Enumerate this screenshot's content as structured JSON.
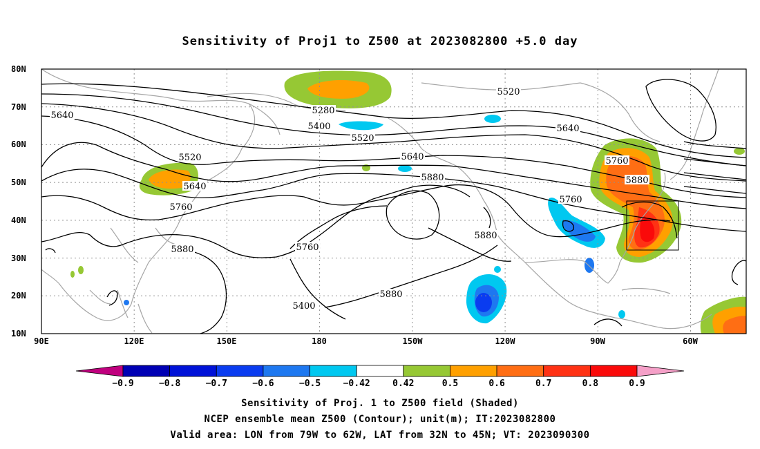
{
  "title": "Sensitivity of Proj1 to Z500 at 2023082800 +5.0 day",
  "lat_labels": [
    "80N",
    "70N",
    "60N",
    "50N",
    "40N",
    "30N",
    "20N",
    "10N"
  ],
  "lon_labels": [
    "90E",
    "120E",
    "150E",
    "180",
    "150W",
    "120W",
    "90W",
    "60W"
  ],
  "contour_labels": [
    "5640",
    "5520",
    "5640",
    "5760",
    "5880",
    "5280",
    "5400",
    "5520",
    "5640",
    "5880",
    "5760",
    "5880",
    "5400",
    "5520",
    "5640",
    "5760",
    "5880",
    "5760",
    "5880"
  ],
  "colorbar": {
    "ticks": [
      "-0.9",
      "-0.8",
      "-0.7",
      "-0.6",
      "-0.5",
      "-0.42",
      "0.42",
      "0.5",
      "0.6",
      "0.7",
      "0.8",
      "0.9"
    ],
    "colors": [
      "#c0007e",
      "#0000b4",
      "#0012d8",
      "#0a3cf0",
      "#1e78f0",
      "#00c8f0",
      "#ffffff",
      "#96c834",
      "#ffa000",
      "#ff6e14",
      "#ff3214",
      "#fa0a0a",
      "#f5a0c8"
    ]
  },
  "captions": {
    "line1": "Sensitivity of Proj. 1 to Z500 field (Shaded)",
    "line2": "NCEP ensemble mean Z500 (Contour); unit(m); IT:2023082800",
    "line3": "Valid area: LON from 79W to 62W, LAT from 32N to 45N; VT: 2023090300"
  }
}
